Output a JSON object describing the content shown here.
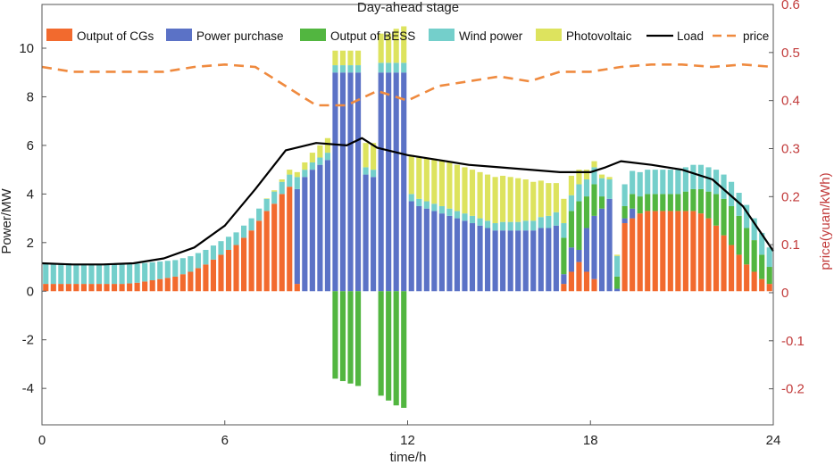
{
  "chart_data": {
    "type": "bar",
    "title": "Day-ahead stage",
    "xlabel": "time/h",
    "ylabel": "Power/MW",
    "y2label": "price(yuan/kWh)",
    "xlim": [
      0,
      24
    ],
    "ylim": [
      -5.5,
      11.8
    ],
    "y2lim": [
      -0.275,
      0.6
    ],
    "xticks": [
      "0",
      "6",
      "12",
      "18",
      "24"
    ],
    "yticks": [
      "-4",
      "-2",
      "0",
      "2",
      "4",
      "6",
      "8",
      "10"
    ],
    "y2ticks": [
      "-0.2",
      "-0.1",
      "0",
      "0.1",
      "0.2",
      "0.3",
      "0.4",
      "0.5",
      "0.6"
    ],
    "grid": false,
    "legend_position": "top",
    "colors": {
      "cgs": "#f26a2e",
      "purchase": "#5b72c6",
      "bess": "#52b640",
      "wind": "#74cfcb",
      "pv": "#dde35e",
      "load": "#000000",
      "price": "#ef8a3f",
      "right_axis": "#c23b3b"
    },
    "legend": [
      {
        "key": "cgs",
        "label": "Output of CGs",
        "kind": "patch"
      },
      {
        "key": "purchase",
        "label": "Power purchase",
        "kind": "patch"
      },
      {
        "key": "bess",
        "label": "Output of BESS",
        "kind": "patch"
      },
      {
        "key": "wind",
        "label": "Wind power",
        "kind": "patch"
      },
      {
        "key": "pv",
        "label": "Photovoltaic",
        "kind": "patch"
      },
      {
        "key": "load",
        "label": "Load",
        "kind": "line"
      },
      {
        "key": "price",
        "label": "price",
        "kind": "dash"
      }
    ],
    "time_step_h": 0.25,
    "series": [
      {
        "key": "cgs",
        "name": "Output of CGs",
        "values": [
          0.3,
          0.3,
          0.3,
          0.3,
          0.3,
          0.3,
          0.3,
          0.3,
          0.3,
          0.3,
          0.3,
          0.32,
          0.35,
          0.4,
          0.45,
          0.5,
          0.55,
          0.6,
          0.7,
          0.8,
          0.95,
          1.1,
          1.3,
          1.5,
          1.7,
          1.9,
          2.2,
          2.5,
          2.9,
          3.3,
          3.6,
          4.0,
          4.3,
          0.3,
          0,
          0,
          0,
          0,
          0,
          0,
          0,
          0,
          0,
          0,
          0,
          0,
          0,
          0,
          0,
          0,
          0,
          0,
          0,
          0,
          0,
          0,
          0,
          0,
          0,
          0,
          0,
          0,
          0,
          0,
          0,
          0,
          0,
          0,
          0.3,
          0.8,
          1.2,
          0.8,
          0.5,
          0,
          0,
          0,
          2.8,
          3.0,
          3.2,
          3.3,
          3.3,
          3.3,
          3.3,
          3.3,
          3.3,
          3.3,
          3.2,
          3.0,
          2.7,
          2.3,
          1.9,
          1.5,
          1.1,
          0.8,
          0.5,
          0.3
        ]
      },
      {
        "key": "purchase",
        "name": "Power purchase",
        "values": [
          0,
          0,
          0,
          0,
          0,
          0,
          0,
          0,
          0,
          0,
          0,
          0,
          0,
          0,
          0,
          0,
          0,
          0,
          0,
          0,
          0,
          0,
          0,
          0,
          0,
          0,
          0,
          0,
          0,
          0,
          0,
          0,
          0,
          3.9,
          4.7,
          5.0,
          5.2,
          5.4,
          9.0,
          9.0,
          9.0,
          9.0,
          4.8,
          4.7,
          9.0,
          9.0,
          9.0,
          9.0,
          3.7,
          3.5,
          3.4,
          3.3,
          3.2,
          3.1,
          3.0,
          2.9,
          2.8,
          2.7,
          2.6,
          2.5,
          2.5,
          2.5,
          2.5,
          2.5,
          2.5,
          2.6,
          2.6,
          2.7,
          0.4,
          1.0,
          0.5,
          1.8,
          2.6,
          3.4,
          3.8,
          0.1,
          0.2,
          0.4,
          0,
          0,
          0,
          0,
          0,
          0,
          0,
          0,
          0,
          0,
          0,
          0,
          0,
          0,
          0,
          0,
          0,
          0
        ]
      },
      {
        "key": "bess",
        "name": "Output of BESS",
        "values": [
          0,
          0,
          0,
          0,
          0,
          0,
          0,
          0,
          0,
          0,
          0,
          0,
          0,
          0,
          0,
          0,
          0,
          0,
          0,
          0,
          0,
          0,
          0,
          0,
          0,
          0,
          0,
          0,
          0,
          0,
          0,
          0,
          0,
          0,
          0,
          0,
          0,
          0,
          -3.6,
          -3.7,
          -3.8,
          -3.9,
          0,
          0,
          -4.3,
          -4.5,
          -4.7,
          -4.8,
          0,
          0,
          0,
          0,
          0,
          0,
          0,
          0,
          0,
          0,
          0,
          0,
          0,
          0,
          0,
          0,
          0,
          0,
          0,
          0,
          1.5,
          1.5,
          2.0,
          1.3,
          1.3,
          0.5,
          0,
          0.5,
          0.5,
          0.6,
          0.7,
          0.7,
          0.7,
          0.7,
          0.7,
          0.7,
          0.8,
          0.9,
          1.0,
          1.1,
          1.3,
          1.5,
          1.6,
          1.6,
          1.5,
          1.3,
          1.0,
          0.7
        ]
      },
      {
        "key": "wind",
        "name": "Wind power",
        "values": [
          0.85,
          0.85,
          0.85,
          0.85,
          0.8,
          0.8,
          0.8,
          0.8,
          0.8,
          0.8,
          0.8,
          0.8,
          0.78,
          0.76,
          0.74,
          0.72,
          0.7,
          0.68,
          0.66,
          0.64,
          0.62,
          0.6,
          0.58,
          0.56,
          0.54,
          0.52,
          0.5,
          0.5,
          0.5,
          0.5,
          0.5,
          0.5,
          0.5,
          0.5,
          0.3,
          0.3,
          0.3,
          0.3,
          0.3,
          0.3,
          0.3,
          0.3,
          0.3,
          0.3,
          0.4,
          0.4,
          0.4,
          0.4,
          0.3,
          0.3,
          0.3,
          0.3,
          0.3,
          0.3,
          0.3,
          0.3,
          0.3,
          0.3,
          0.3,
          0.3,
          0.35,
          0.35,
          0.35,
          0.4,
          0.4,
          0.45,
          0.5,
          0.55,
          0.6,
          0.65,
          0.7,
          0.7,
          0.7,
          0.75,
          0.8,
          0.85,
          0.9,
          0.95,
          1.0,
          1.0,
          1.0,
          1.0,
          1.0,
          1.0,
          1.0,
          1.0,
          1.0,
          1.0,
          1.0,
          1.0,
          1.0,
          0.95,
          0.95,
          0.9,
          0.9,
          0.8
        ]
      },
      {
        "key": "pv",
        "name": "Photovoltaic",
        "values": [
          0,
          0,
          0,
          0,
          0,
          0,
          0,
          0,
          0,
          0,
          0,
          0,
          0,
          0,
          0,
          0,
          0,
          0,
          0,
          0,
          0,
          0,
          0,
          0,
          0,
          0,
          0,
          0,
          0,
          0.02,
          0.05,
          0.1,
          0.2,
          0.2,
          0.3,
          0.4,
          0.5,
          0.6,
          0.6,
          0.6,
          0.6,
          0.6,
          1.0,
          1.1,
          1.2,
          1.2,
          1.4,
          1.5,
          1.6,
          1.7,
          1.8,
          1.85,
          1.9,
          1.9,
          1.9,
          1.9,
          1.9,
          1.9,
          1.9,
          1.9,
          1.9,
          1.85,
          1.8,
          1.7,
          1.6,
          1.5,
          1.35,
          1.2,
          1.0,
          0.8,
          0.6,
          0.4,
          0.25,
          0.15,
          0.1,
          0.05,
          0,
          0,
          0,
          0,
          0,
          0,
          0,
          0,
          0,
          0,
          0,
          0,
          0,
          0,
          0,
          0,
          0,
          0,
          0,
          0
        ]
      }
    ],
    "load": {
      "name": "Load",
      "x": [
        0,
        1,
        2,
        3,
        4,
        5,
        6,
        7,
        8,
        9,
        10,
        10.5,
        11,
        12,
        13,
        14,
        15,
        16,
        17,
        18,
        18.5,
        19,
        20,
        21,
        22,
        23,
        24
      ],
      "values": [
        1.15,
        1.1,
        1.1,
        1.15,
        1.35,
        1.8,
        2.7,
        4.2,
        5.8,
        6.1,
        6.0,
        6.3,
        5.9,
        5.6,
        5.4,
        5.2,
        5.1,
        5.0,
        4.9,
        4.9,
        5.1,
        5.35,
        5.2,
        5.0,
        4.6,
        3.5,
        1.65
      ]
    },
    "price": {
      "name": "price",
      "x": [
        0,
        1,
        2,
        3,
        4,
        5,
        6,
        7,
        8,
        9,
        10,
        11,
        12,
        13,
        14,
        15,
        16,
        17,
        18,
        19,
        20,
        21,
        22,
        23,
        24
      ],
      "values": [
        0.47,
        0.46,
        0.46,
        0.46,
        0.46,
        0.47,
        0.475,
        0.47,
        0.43,
        0.39,
        0.39,
        0.42,
        0.4,
        0.43,
        0.44,
        0.45,
        0.44,
        0.46,
        0.46,
        0.47,
        0.475,
        0.475,
        0.47,
        0.475,
        0.47
      ]
    }
  }
}
